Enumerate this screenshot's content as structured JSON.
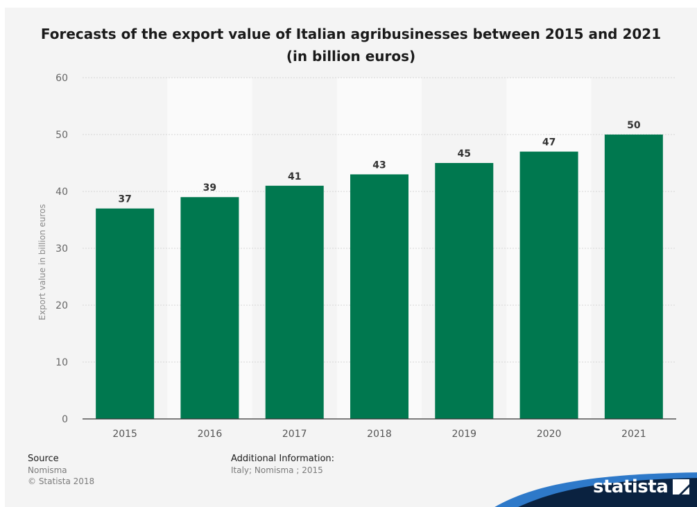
{
  "title_lines": [
    "Forecasts of the export value of Italian agribusinesses between 2015 and 2021",
    "(in billion euros)"
  ],
  "chart_data": {
    "type": "bar",
    "categories": [
      "2015",
      "2016",
      "2017",
      "2018",
      "2019",
      "2020",
      "2021"
    ],
    "values": [
      37,
      39,
      41,
      43,
      45,
      47,
      50
    ],
    "data_labels": [
      "37",
      "39",
      "41",
      "43",
      "45",
      "47",
      "50"
    ],
    "ylabel": "Export value in billion euros",
    "xlabel": "",
    "ylim": [
      0,
      60
    ],
    "yticks": [
      0,
      10,
      20,
      30,
      40,
      50,
      60
    ],
    "ytick_labels": [
      "0",
      "10",
      "20",
      "30",
      "40",
      "50",
      "60"
    ],
    "grid": true,
    "bar_color": "#00784f"
  },
  "footer": {
    "source_heading": "Source",
    "source_name": "Nomisma",
    "copyright": "© Statista 2018",
    "info_heading": "Additional Information:",
    "info_text": "Italy; Nomisma ; 2015"
  },
  "brand": {
    "name": "statista",
    "icon": "statista-logo-icon",
    "band_color": "#0a2240",
    "band_accent": "#2e79c9"
  }
}
